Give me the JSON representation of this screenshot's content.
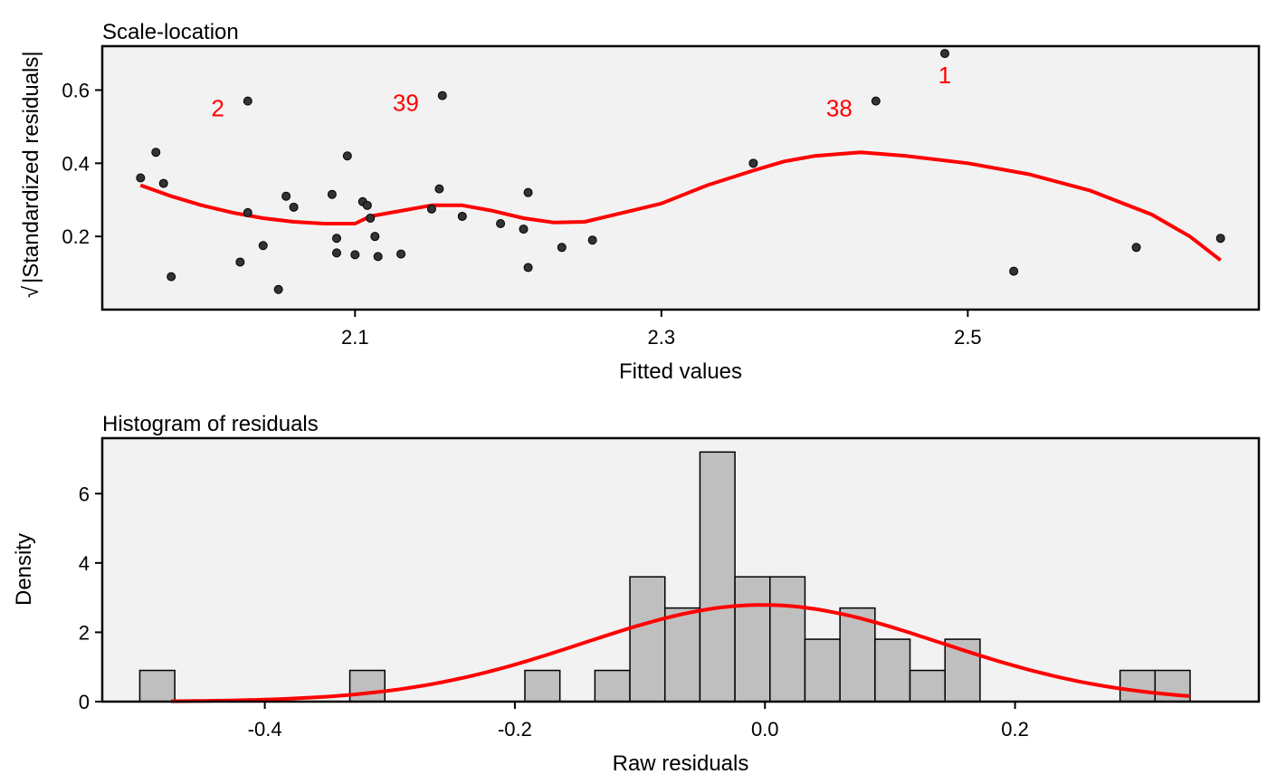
{
  "chart_data": [
    {
      "type": "scatter",
      "title": "Scale-location",
      "xlabel": "Fitted values",
      "ylabel": "|Standardized residuals|",
      "ylabel_prefix": "√",
      "xlim": [
        1.935,
        2.69
      ],
      "ylim": [
        0.0,
        0.72
      ],
      "xticks": [
        "2.1",
        "2.3",
        "2.5"
      ],
      "yticks": [
        "0.2",
        "0.4",
        "0.6"
      ],
      "points": [
        {
          "x": 1.96,
          "y": 0.36
        },
        {
          "x": 1.97,
          "y": 0.43
        },
        {
          "x": 1.975,
          "y": 0.345
        },
        {
          "x": 1.98,
          "y": 0.09
        },
        {
          "x": 2.03,
          "y": 0.57
        },
        {
          "x": 2.025,
          "y": 0.13
        },
        {
          "x": 2.03,
          "y": 0.265
        },
        {
          "x": 2.04,
          "y": 0.175
        },
        {
          "x": 2.05,
          "y": 0.055
        },
        {
          "x": 2.055,
          "y": 0.31
        },
        {
          "x": 2.06,
          "y": 0.28
        },
        {
          "x": 2.085,
          "y": 0.315
        },
        {
          "x": 2.088,
          "y": 0.195
        },
        {
          "x": 2.088,
          "y": 0.155
        },
        {
          "x": 2.095,
          "y": 0.42
        },
        {
          "x": 2.1,
          "y": 0.15
        },
        {
          "x": 2.105,
          "y": 0.295
        },
        {
          "x": 2.108,
          "y": 0.285
        },
        {
          "x": 2.11,
          "y": 0.25
        },
        {
          "x": 2.113,
          "y": 0.2
        },
        {
          "x": 2.115,
          "y": 0.145
        },
        {
          "x": 2.13,
          "y": 0.152
        },
        {
          "x": 2.15,
          "y": 0.275
        },
        {
          "x": 2.155,
          "y": 0.33
        },
        {
          "x": 2.157,
          "y": 0.585
        },
        {
          "x": 2.17,
          "y": 0.255
        },
        {
          "x": 2.195,
          "y": 0.235
        },
        {
          "x": 2.21,
          "y": 0.22
        },
        {
          "x": 2.213,
          "y": 0.32
        },
        {
          "x": 2.213,
          "y": 0.115
        },
        {
          "x": 2.235,
          "y": 0.17
        },
        {
          "x": 2.255,
          "y": 0.19
        },
        {
          "x": 2.36,
          "y": 0.4
        },
        {
          "x": 2.44,
          "y": 0.57
        },
        {
          "x": 2.485,
          "y": 0.7
        },
        {
          "x": 2.53,
          "y": 0.105
        },
        {
          "x": 2.61,
          "y": 0.17
        },
        {
          "x": 2.665,
          "y": 0.195
        }
      ],
      "labels": [
        {
          "text": "2",
          "x": 2.03,
          "y": 0.57
        },
        {
          "text": "39",
          "x": 2.157,
          "y": 0.585
        },
        {
          "text": "38",
          "x": 2.44,
          "y": 0.57
        },
        {
          "text": "1",
          "x": 2.485,
          "y": 0.7
        }
      ],
      "smooth": [
        [
          1.96,
          0.34
        ],
        [
          1.98,
          0.31
        ],
        [
          2.0,
          0.285
        ],
        [
          2.02,
          0.265
        ],
        [
          2.04,
          0.25
        ],
        [
          2.06,
          0.24
        ],
        [
          2.08,
          0.235
        ],
        [
          2.1,
          0.235
        ],
        [
          2.11,
          0.255
        ],
        [
          2.13,
          0.27
        ],
        [
          2.15,
          0.285
        ],
        [
          2.17,
          0.285
        ],
        [
          2.19,
          0.27
        ],
        [
          2.21,
          0.25
        ],
        [
          2.23,
          0.238
        ],
        [
          2.25,
          0.24
        ],
        [
          2.27,
          0.26
        ],
        [
          2.3,
          0.29
        ],
        [
          2.33,
          0.34
        ],
        [
          2.36,
          0.38
        ],
        [
          2.38,
          0.405
        ],
        [
          2.4,
          0.42
        ],
        [
          2.43,
          0.43
        ],
        [
          2.46,
          0.42
        ],
        [
          2.5,
          0.4
        ],
        [
          2.54,
          0.37
        ],
        [
          2.58,
          0.325
        ],
        [
          2.62,
          0.26
        ],
        [
          2.645,
          0.2
        ],
        [
          2.665,
          0.135
        ]
      ]
    },
    {
      "type": "bar",
      "title": "Histogram of residuals",
      "xlabel": "Raw residuals",
      "ylabel": "Density",
      "xlim": [
        -0.53,
        0.395
      ],
      "ylim": [
        0,
        7.6
      ],
      "xticks": [
        "-0.4",
        "-0.2",
        "0.0",
        "0.2"
      ],
      "yticks": [
        "0",
        "2",
        "4",
        "6"
      ],
      "bin_width": 0.028,
      "bins": [
        {
          "x0": -0.5,
          "density": 0.9
        },
        {
          "x0": -0.472,
          "density": 0
        },
        {
          "x0": -0.444,
          "density": 0
        },
        {
          "x0": -0.416,
          "density": 0
        },
        {
          "x0": -0.388,
          "density": 0
        },
        {
          "x0": -0.36,
          "density": 0
        },
        {
          "x0": -0.332,
          "density": 0.9
        },
        {
          "x0": -0.304,
          "density": 0
        },
        {
          "x0": -0.276,
          "density": 0
        },
        {
          "x0": -0.248,
          "density": 0
        },
        {
          "x0": -0.22,
          "density": 0
        },
        {
          "x0": -0.192,
          "density": 0.9
        },
        {
          "x0": -0.164,
          "density": 0
        },
        {
          "x0": -0.136,
          "density": 0.9
        },
        {
          "x0": -0.108,
          "density": 3.6
        },
        {
          "x0": -0.08,
          "density": 2.7
        },
        {
          "x0": -0.052,
          "density": 7.2
        },
        {
          "x0": -0.024,
          "density": 3.6
        },
        {
          "x0": 0.004,
          "density": 3.6
        },
        {
          "x0": 0.032,
          "density": 1.8
        },
        {
          "x0": 0.06,
          "density": 2.7
        },
        {
          "x0": 0.088,
          "density": 1.8
        },
        {
          "x0": 0.116,
          "density": 0.9
        },
        {
          "x0": 0.144,
          "density": 1.8
        },
        {
          "x0": 0.172,
          "density": 0
        },
        {
          "x0": 0.2,
          "density": 0
        },
        {
          "x0": 0.228,
          "density": 0
        },
        {
          "x0": 0.256,
          "density": 0
        },
        {
          "x0": 0.284,
          "density": 0.9
        },
        {
          "x0": 0.312,
          "density": 0.9
        }
      ],
      "density_curve": {
        "mean": -0.002,
        "sd": 0.143,
        "from": -0.475,
        "to": 0.34
      }
    }
  ]
}
